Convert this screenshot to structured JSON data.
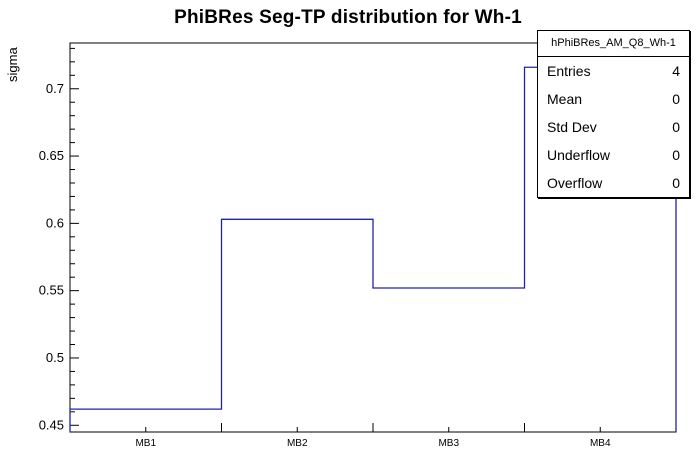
{
  "title": "PhiBRes Seg-TP distribution for Wh-1",
  "stats_box": {
    "header": "hPhiBRes_AM_Q8_Wh-1",
    "rows": [
      {
        "label": "Entries",
        "value": "4"
      },
      {
        "label": "Mean",
        "value": "0"
      },
      {
        "label": "Std Dev",
        "value": "0"
      },
      {
        "label": "Underflow",
        "value": "0"
      },
      {
        "label": "Overflow",
        "value": "0"
      }
    ]
  },
  "chart_data": {
    "type": "line",
    "subtype": "step-histogram",
    "title": "PhiBRes Seg-TP distribution for Wh-1",
    "categories": [
      "MB1",
      "MB2",
      "MB3",
      "MB4"
    ],
    "values": [
      0.462,
      0.603,
      0.552,
      0.716
    ],
    "xlabel": "",
    "ylabel": "sigma",
    "ylim": [
      0.445,
      0.734
    ],
    "yticks_major": [
      0.45,
      0.5,
      0.55,
      0.6,
      0.65,
      0.7
    ],
    "ytick_minor_step": 0.01,
    "line_color": "#2222aa",
    "frame_color": "#000000",
    "grid": false,
    "legend": "none"
  }
}
